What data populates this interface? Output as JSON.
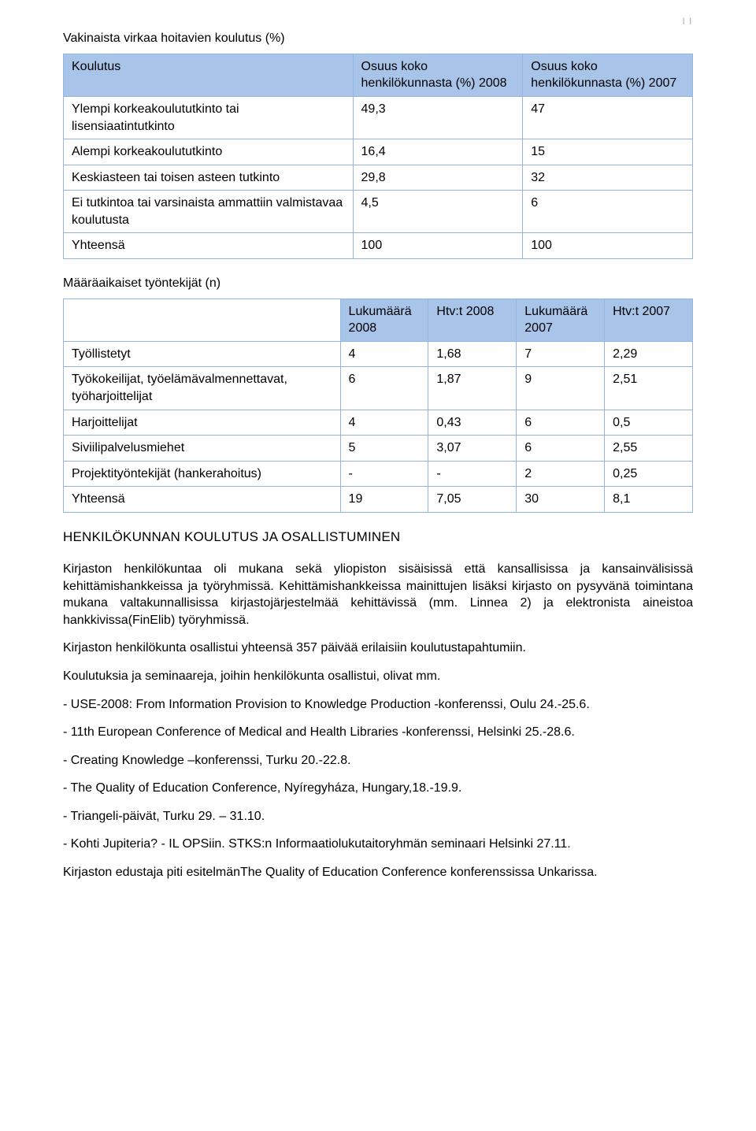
{
  "page_marker": "| |",
  "table1": {
    "title": "Vakinaista virkaa hoitavien koulutus (%)",
    "headers": [
      "Koulutus",
      "Osuus koko henkilökunnasta (%) 2008",
      "Osuus koko henkilökunnasta (%) 2007"
    ],
    "rows": [
      [
        "Ylempi korkeakoulututkinto tai lisensiaatintutkinto",
        "49,3",
        "47"
      ],
      [
        "Alempi korkeakoulututkinto",
        "16,4",
        "15"
      ],
      [
        "Keskiasteen tai toisen asteen tutkinto",
        "29,8",
        "32"
      ],
      [
        "Ei tutkintoa tai varsinaista ammattiin valmistavaa koulutusta",
        "4,5",
        "6"
      ],
      [
        "Yhteensä",
        "100",
        "100"
      ]
    ],
    "col_widths": [
      "46%",
      "27%",
      "27%"
    ]
  },
  "table2": {
    "title": "Määräaikaiset työntekijät (n)",
    "headers": [
      "",
      "Lukumäärä 2008",
      "Htv:t 2008",
      "Lukumäärä 2007",
      "Htv:t 2007"
    ],
    "rows": [
      [
        "Työllistetyt",
        "4",
        "1,68",
        "7",
        "2,29"
      ],
      [
        "Työkokeilijat, työelämävalmennettavat, työharjoittelijat",
        "6",
        "1,87",
        "9",
        "2,51"
      ],
      [
        "Harjoittelijat",
        "4",
        "0,43",
        "6",
        "0,5"
      ],
      [
        "Siviilipalvelusmiehet",
        "5",
        "3,07",
        "6",
        "2,55"
      ],
      [
        "Projektityöntekijät (hankerahoitus)",
        "-",
        "-",
        "2",
        "0,25"
      ],
      [
        "Yhteensä",
        "19",
        "7,05",
        "30",
        "8,1"
      ]
    ],
    "col_widths": [
      "44%",
      "14%",
      "14%",
      "14%",
      "14%"
    ]
  },
  "heading": "HENKILÖKUNNAN KOULUTUS JA OSALLISTUMINEN",
  "paragraphs": [
    "Kirjaston henkilökuntaa oli mukana sekä yliopiston sisäisissä että kansallisissa ja kansainvälisissä kehittämishankkeissa ja työryhmissä. Kehittämishankkeissa mainittujen lisäksi kirjasto on pysyvänä toimintana mukana valtakunnallisissa kirjastojärjestelmää kehittävissä (mm. Linnea 2) ja elektronista aineistoa hankkivissa(FinElib) työryhmissä.",
    "Kirjaston henkilökunta osallistui yhteensä 357 päivää erilaisiin koulutustapahtumiin.",
    "Koulutuksia ja seminaareja, joihin henkilökunta osallistui, olivat mm."
  ],
  "list_items": [
    "- USE-2008: From Information Provision to Knowledge Production -konferenssi, Oulu 24.-25.6.",
    "- 11th European Conference of Medical and Health Libraries -konferenssi, Helsinki 25.-28.6.",
    "- Creating Knowledge –konferenssi, Turku 20.-22.8.",
    "- The Quality of Education Conference, Nyíregyháza, Hungary,18.-19.9.",
    "- Triangeli-päivät, Turku 29. – 31.10.",
    "- Kohti Jupiteria? - IL OPSiin. STKS:n Informaatiolukutaitoryhmän seminaari Helsinki 27.11."
  ],
  "closing": "Kirjaston edustaja piti esitelmänThe Quality of Education Conference konferenssissa Unkarissa.",
  "colors": {
    "header_bg": "#a8c4e8",
    "border": "#94b5e2",
    "text": "#000000",
    "bg": "#ffffff"
  }
}
